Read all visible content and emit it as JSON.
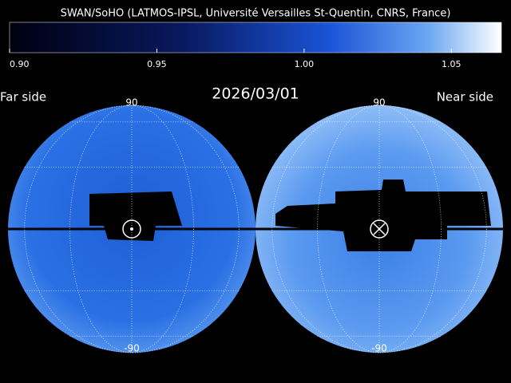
{
  "header": {
    "title": "SWAN/SoHO (LATMOS-IPSL, Université Versailles St-Quentin, CNRS, France)",
    "date": "2026/03/01"
  },
  "colorbar": {
    "lim": [
      0.9,
      1.067
    ],
    "ticks": [
      {
        "value": 0.9,
        "label": "0.90"
      },
      {
        "value": 0.95,
        "label": "0.95"
      },
      {
        "value": 1.0,
        "label": "1.00"
      },
      {
        "value": 1.05,
        "label": "1.05"
      }
    ]
  },
  "maps": [
    {
      "label": "Far side",
      "top": "90",
      "bottom": "-90"
    },
    {
      "label": "Near side",
      "top": "90",
      "bottom": "-90"
    }
  ]
}
